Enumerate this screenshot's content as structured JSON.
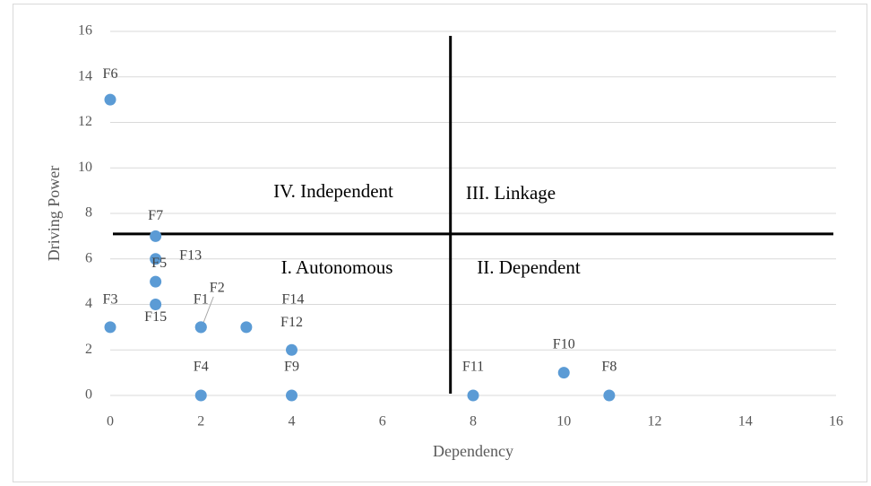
{
  "chart_data": {
    "type": "scatter",
    "x_label": "Dependency",
    "y_label": "Driving Power",
    "xlim": [
      0,
      16
    ],
    "xticks": [
      0,
      2,
      4,
      6,
      8,
      10,
      12,
      14,
      16
    ],
    "ylim": [
      0,
      16
    ],
    "yticks": [
      0,
      2,
      4,
      6,
      8,
      10,
      12,
      14,
      16
    ],
    "grid": true,
    "color": "#5b9bd5",
    "points": [
      {
        "label": "F6",
        "x": 0,
        "y": 13
      },
      {
        "label": "F7",
        "x": 1,
        "y": 7
      },
      {
        "label": "F13",
        "x": 1,
        "y": 6
      },
      {
        "label": "F5",
        "x": 1,
        "y": 5
      },
      {
        "label": "F15",
        "x": 1,
        "y": 4
      },
      {
        "label": "F3",
        "x": 0,
        "y": 3
      },
      {
        "label": "F1",
        "x": 2,
        "y": 3
      },
      {
        "label": "F2",
        "x": 2,
        "y": 3
      },
      {
        "label": "F14",
        "x": 3,
        "y": 3
      },
      {
        "label": "F12",
        "x": 4,
        "y": 2
      },
      {
        "label": "F4",
        "x": 2,
        "y": 0
      },
      {
        "label": "F9",
        "x": 4,
        "y": 0
      },
      {
        "label": "F11",
        "x": 8,
        "y": 0
      },
      {
        "label": "F10",
        "x": 10,
        "y": 1
      },
      {
        "label": "F8",
        "x": 11,
        "y": 0
      }
    ],
    "dividers": {
      "x": 7.5,
      "y": 7.1
    },
    "quadrants": [
      "IV. Independent",
      "III. Linkage",
      "I. Autonomous",
      "II. Dependent"
    ]
  }
}
